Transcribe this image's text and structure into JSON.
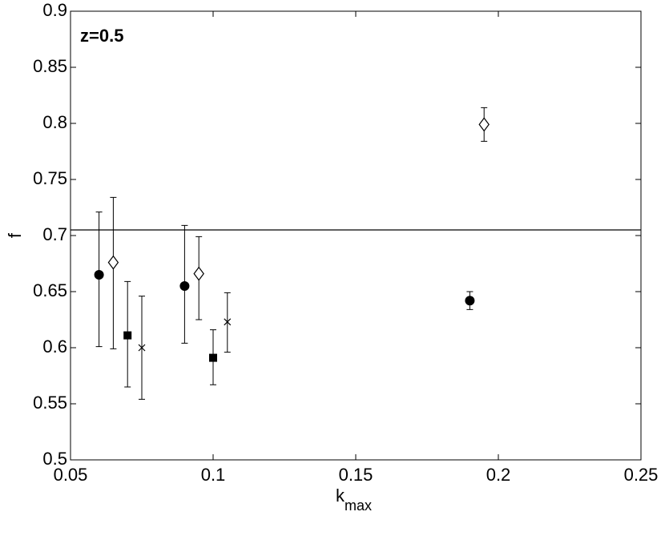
{
  "chart_data": {
    "type": "scatter",
    "annotation": "z=0.5",
    "xlabel": {
      "text": "k",
      "subscript": "max"
    },
    "ylabel": "f",
    "xlim": [
      0.05,
      0.25
    ],
    "ylim": [
      0.5,
      0.9
    ],
    "xticks": [
      0.05,
      0.1,
      0.15,
      0.2,
      0.25
    ],
    "yticks": [
      0.5,
      0.55,
      0.6,
      0.65,
      0.7,
      0.75,
      0.8,
      0.85,
      0.9
    ],
    "hline": 0.705,
    "color": "#000000",
    "series": [
      {
        "marker": "circle",
        "x": [
          0.06,
          0.09,
          0.19
        ],
        "values": [
          0.665,
          0.655,
          0.642
        ],
        "err_low": [
          0.601,
          0.604,
          0.634
        ],
        "err_high": [
          0.721,
          0.709,
          0.65
        ]
      },
      {
        "marker": "diamond",
        "x": [
          0.065,
          0.095,
          0.195
        ],
        "values": [
          0.676,
          0.666,
          0.799
        ],
        "err_low": [
          0.599,
          0.625,
          0.784
        ],
        "err_high": [
          0.734,
          0.699,
          0.814
        ]
      },
      {
        "marker": "square",
        "x": [
          0.07,
          0.1
        ],
        "values": [
          0.611,
          0.591
        ],
        "err_low": [
          0.565,
          0.567
        ],
        "err_high": [
          0.659,
          0.616
        ]
      },
      {
        "marker": "cross",
        "x": [
          0.075,
          0.105
        ],
        "values": [
          0.6,
          0.623
        ],
        "err_low": [
          0.554,
          0.596
        ],
        "err_high": [
          0.646,
          0.649
        ]
      }
    ]
  }
}
